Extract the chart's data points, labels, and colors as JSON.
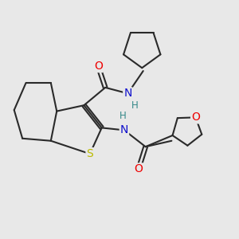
{
  "bg_color": "#e8e8e8",
  "bond_color": "#2a2a2a",
  "bond_width": 1.5,
  "atom_colors": {
    "O": "#ee0000",
    "N": "#1010cc",
    "S": "#bbbb00",
    "H": "#338888",
    "C": "#2a2a2a"
  }
}
